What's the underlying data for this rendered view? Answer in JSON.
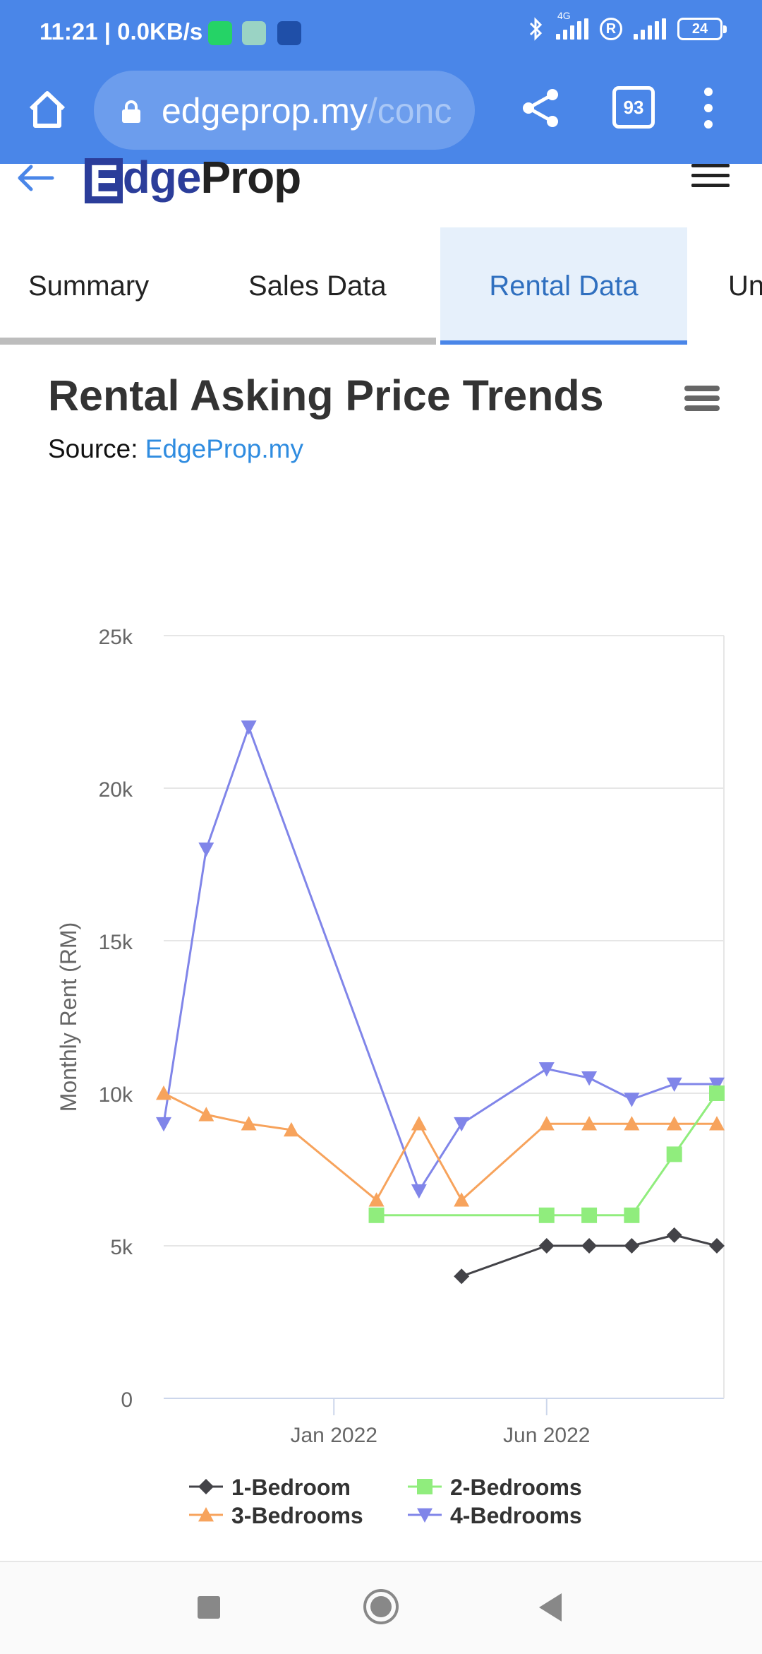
{
  "status_bar": {
    "time": "11:21 | 0.0KB/s",
    "network": "4G",
    "sim_badge": "R",
    "battery": "24"
  },
  "browser": {
    "url_host": "edgeprop.my",
    "url_path": "/conc",
    "tab_count": "93",
    "icons": [
      "home-icon",
      "lock-icon",
      "share-icon",
      "tabs-counter",
      "overflow-menu-icon"
    ]
  },
  "site": {
    "logo_e": "E",
    "logo_dge": "dge",
    "logo_prop": "Prop"
  },
  "tabs": [
    {
      "label": "Summary",
      "active": false
    },
    {
      "label": "Sales Data",
      "active": false
    },
    {
      "label": "Rental Data",
      "active": true
    },
    {
      "label": "Un",
      "active": false
    }
  ],
  "chart_header": {
    "title": "Rental Asking Price Trends",
    "source_label": "Source:",
    "source_link": "EdgeProp.my"
  },
  "chart_data": {
    "type": "line",
    "title": "Rental Asking Price Trends",
    "ylabel": "Monthly Rent (RM)",
    "ylim": [
      0,
      25000
    ],
    "yticks": [
      0,
      5000,
      10000,
      15000,
      20000,
      25000
    ],
    "ytick_labels": [
      "0",
      "5k",
      "10k",
      "15k",
      "20k",
      "25k"
    ],
    "xlim": [
      "2021-09",
      "2022-10"
    ],
    "xtick_labels": [
      "Jan 2022",
      "Jun 2022"
    ],
    "xticks": [
      "2022-01",
      "2022-06"
    ],
    "x": [
      "2021-09",
      "2021-10",
      "2021-11",
      "2021-12",
      "2022-01",
      "2022-02",
      "2022-03",
      "2022-04",
      "2022-05",
      "2022-06",
      "2022-07",
      "2022-08",
      "2022-09",
      "2022-10"
    ],
    "grid": true,
    "legend_position": "bottom",
    "series": [
      {
        "name": "1-Bedroom",
        "color": "#434348",
        "marker": "diamond",
        "values": [
          null,
          null,
          null,
          null,
          null,
          null,
          null,
          4000,
          null,
          5000,
          5000,
          5000,
          5350,
          5000
        ]
      },
      {
        "name": "2-Bedrooms",
        "color": "#90ed7d",
        "marker": "square",
        "values": [
          null,
          null,
          null,
          null,
          null,
          6000,
          null,
          null,
          null,
          6000,
          6000,
          6000,
          8000,
          10000
        ]
      },
      {
        "name": "3-Bedrooms",
        "color": "#f7a35c",
        "marker": "triangle",
        "values": [
          10000,
          9300,
          9000,
          8800,
          null,
          6500,
          9000,
          6500,
          null,
          9000,
          9000,
          9000,
          9000,
          9000
        ]
      },
      {
        "name": "4-Bedrooms",
        "color": "#8085e9",
        "marker": "triangle-down",
        "values": [
          9000,
          18000,
          22000,
          null,
          null,
          null,
          6800,
          9000,
          null,
          10800,
          10500,
          9800,
          10300,
          10300
        ]
      }
    ]
  }
}
